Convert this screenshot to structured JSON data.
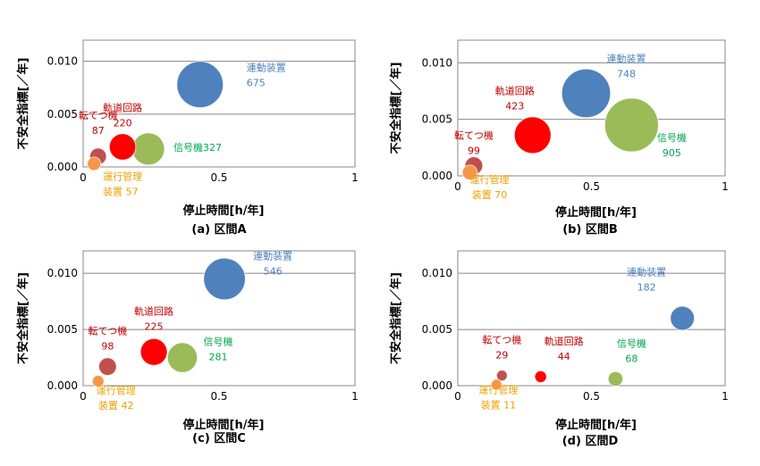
{
  "chart_data": [
    {
      "type": "bubble",
      "caption": "(a) 区間A",
      "xlabel": "停止時間[h/年]",
      "ylabel": "不安全指標[／年]",
      "xlim": [
        0,
        1
      ],
      "ylim": [
        0,
        0.012
      ],
      "xticks": [
        "0",
        "0.5",
        "1"
      ],
      "yticks": [
        "0.000",
        "0.005",
        "0.010"
      ],
      "grid": true,
      "series": [
        {
          "name": "連動装置",
          "size_label": "675",
          "x": 0.43,
          "y": 0.0078,
          "size": 675,
          "color": "#4F81BD"
        },
        {
          "name": "信号機",
          "size_label": "327",
          "x": 0.24,
          "y": 0.0017,
          "size": 327,
          "color": "#9BBB59"
        },
        {
          "name": "軌道回路",
          "size_label": "220",
          "x": 0.145,
          "y": 0.0019,
          "size": 220,
          "color": "#FF0000"
        },
        {
          "name": "転てつ機",
          "size_label": "87",
          "x": 0.055,
          "y": 0.001,
          "size": 87,
          "color": "#C0504D"
        },
        {
          "name": "運行管理装置",
          "size_label": "57",
          "x": 0.04,
          "y": 0.0003,
          "size": 57,
          "color": "#F79646"
        }
      ]
    },
    {
      "type": "bubble",
      "caption": "(b) 区間B",
      "xlabel": "停止時間[h/年]",
      "ylabel": "不安全指標[／年]",
      "xlim": [
        0,
        1
      ],
      "ylim": [
        0,
        0.012
      ],
      "xticks": [
        "0",
        "0.5",
        "1"
      ],
      "yticks": [
        "0.000",
        "0.005",
        "0.010"
      ],
      "grid": true,
      "series": [
        {
          "name": "連動装置",
          "size_label": "748",
          "x": 0.48,
          "y": 0.0073,
          "size": 748,
          "color": "#4F81BD"
        },
        {
          "name": "信号機",
          "size_label": "905",
          "x": 0.65,
          "y": 0.0045,
          "size": 905,
          "color": "#9BBB59"
        },
        {
          "name": "軌道回路",
          "size_label": "423",
          "x": 0.28,
          "y": 0.0036,
          "size": 423,
          "color": "#FF0000"
        },
        {
          "name": "転てつ機",
          "size_label": "99",
          "x": 0.06,
          "y": 0.0009,
          "size": 99,
          "color": "#C0504D"
        },
        {
          "name": "運行管理装置",
          "size_label": "70",
          "x": 0.045,
          "y": 0.0003,
          "size": 70,
          "color": "#F79646"
        }
      ]
    },
    {
      "type": "bubble",
      "caption": "(c) 区間C",
      "xlabel": "停止時間[h/年]",
      "ylabel": "不安全指標[／年]",
      "xlim": [
        0,
        1
      ],
      "ylim": [
        0,
        0.012
      ],
      "xticks": [
        "0",
        "0.5",
        "1"
      ],
      "yticks": [
        "0.000",
        "0.005",
        "0.010"
      ],
      "grid": true,
      "series": [
        {
          "name": "連動装置",
          "size_label": "546",
          "x": 0.52,
          "y": 0.0095,
          "size": 546,
          "color": "#4F81BD"
        },
        {
          "name": "信号機",
          "size_label": "281",
          "x": 0.365,
          "y": 0.0025,
          "size": 281,
          "color": "#9BBB59"
        },
        {
          "name": "軌道回路",
          "size_label": "225",
          "x": 0.26,
          "y": 0.003,
          "size": 225,
          "color": "#FF0000"
        },
        {
          "name": "転てつ機",
          "size_label": "98",
          "x": 0.09,
          "y": 0.0017,
          "size": 98,
          "color": "#C0504D"
        },
        {
          "name": "運行管理装置",
          "size_label": "42",
          "x": 0.055,
          "y": 0.0004,
          "size": 42,
          "color": "#F79646"
        }
      ]
    },
    {
      "type": "bubble",
      "caption": "(d) 区間D",
      "xlabel": "停止時間[h/年]",
      "ylabel": "不安全指標[／年]",
      "xlim": [
        0,
        1
      ],
      "ylim": [
        0,
        0.012
      ],
      "xticks": [
        "0",
        "0.5",
        "1"
      ],
      "yticks": [
        "0.000",
        "0.005",
        "0.010"
      ],
      "grid": true,
      "series": [
        {
          "name": "連動装置",
          "size_label": "182",
          "x": 0.84,
          "y": 0.006,
          "size": 182,
          "color": "#4F81BD"
        },
        {
          "name": "信号機",
          "size_label": "68",
          "x": 0.59,
          "y": 0.0006,
          "size": 68,
          "color": "#9BBB59"
        },
        {
          "name": "軌道回路",
          "size_label": "44",
          "x": 0.31,
          "y": 0.0008,
          "size": 44,
          "color": "#FF0000"
        },
        {
          "name": "転てつ機",
          "size_label": "29",
          "x": 0.165,
          "y": 0.0009,
          "size": 29,
          "color": "#C0504D"
        },
        {
          "name": "運行管理装置",
          "size_label": "11",
          "x": 0.145,
          "y": 0.0001,
          "size": 11,
          "color": "#F79646"
        }
      ]
    }
  ]
}
